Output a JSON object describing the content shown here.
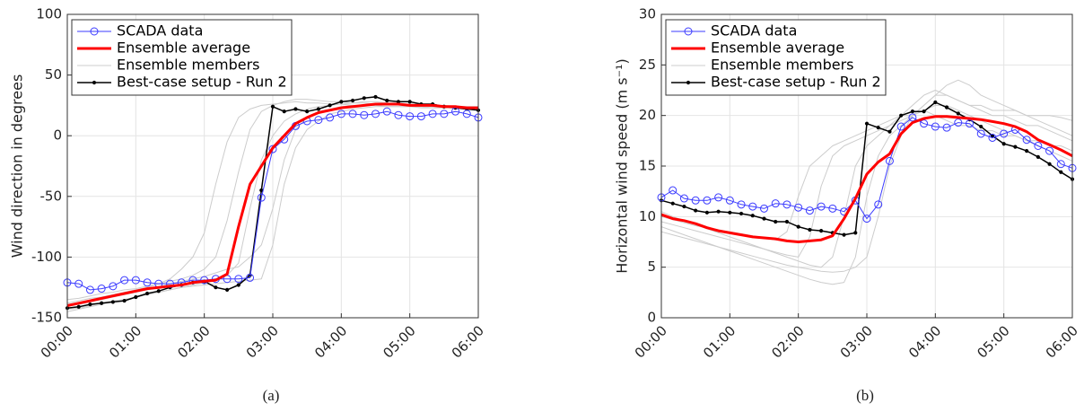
{
  "chart_data": [
    {
      "type": "line",
      "caption": "(a)",
      "y_label": "Wind direction in degrees",
      "grid": true,
      "legend": "upper-left",
      "x": [
        "00:00",
        "00:10",
        "00:20",
        "00:30",
        "00:40",
        "00:50",
        "01:00",
        "01:10",
        "01:20",
        "01:30",
        "01:40",
        "01:50",
        "02:00",
        "02:10",
        "02:20",
        "02:30",
        "02:40",
        "02:50",
        "03:00",
        "03:10",
        "03:20",
        "03:30",
        "03:40",
        "03:50",
        "04:00",
        "04:10",
        "04:20",
        "04:30",
        "04:40",
        "04:50",
        "05:00",
        "05:10",
        "05:20",
        "05:30",
        "05:40",
        "05:50",
        "06:00"
      ],
      "xlim": [
        "00:00",
        "06:00"
      ],
      "xticks": [
        "00:00",
        "01:00",
        "02:00",
        "03:00",
        "04:00",
        "05:00",
        "06:00"
      ],
      "ylim": [
        -150,
        100
      ],
      "yticks": [
        -150,
        -100,
        -50,
        0,
        50,
        100
      ],
      "series": [
        {
          "name": "SCADA data",
          "color": "#3b3bff",
          "marker": "circle",
          "values": [
            -121,
            -122,
            -127,
            -126,
            -124,
            -119,
            -119,
            -121,
            -122,
            -122,
            -121,
            -119,
            -119,
            -118,
            -118,
            -118,
            -117,
            -51,
            -11,
            -3,
            8,
            12,
            13,
            15,
            18,
            18,
            17,
            18,
            20,
            17,
            16,
            16,
            18,
            18,
            20,
            18,
            15
          ]
        },
        {
          "name": "Ensemble average",
          "color": "#ff0000",
          "values": [
            -140,
            -138,
            -136,
            -134,
            -132,
            -130,
            -128,
            -126,
            -125,
            -124,
            -123,
            -121,
            -120,
            -119,
            -114,
            -75,
            -40,
            -25,
            -10,
            0,
            10,
            15,
            19,
            21,
            23,
            24,
            25,
            26,
            26,
            26,
            25,
            25,
            25,
            24,
            24,
            23,
            23
          ]
        },
        {
          "name": "Ensemble members",
          "color": "#cccccc",
          "members": [
            [
              -138,
              -136,
              -134,
              -133,
              -131,
              -129,
              -127,
              -125,
              -122,
              -118,
              -110,
              -100,
              -80,
              -40,
              -5,
              15,
              22,
              25,
              26,
              27,
              28,
              27,
              27,
              26,
              26,
              25,
              25,
              25,
              24,
              24,
              24,
              24,
              23,
              23,
              23,
              22,
              22
            ],
            [
              -145,
              -143,
              -141,
              -139,
              -137,
              -135,
              -133,
              -131,
              -129,
              -127,
              -125,
              -123,
              -121,
              -119,
              -115,
              -105,
              -60,
              -20,
              0,
              12,
              18,
              22,
              24,
              25,
              26,
              27,
              28,
              28,
              27,
              27,
              26,
              26,
              25,
              25,
              24,
              24,
              24
            ],
            [
              -140,
              -139,
              -137,
              -135,
              -133,
              -131,
              -129,
              -127,
              -125,
              -122,
              -120,
              -118,
              -116,
              -113,
              -110,
              -108,
              -100,
              -90,
              -60,
              -20,
              5,
              15,
              20,
              22,
              24,
              25,
              25,
              26,
              26,
              26,
              25,
              25,
              24,
              24,
              24,
              23,
              23
            ],
            [
              -135,
              -134,
              -132,
              -130,
              -129,
              -127,
              -126,
              -124,
              -122,
              -120,
              -118,
              -115,
              -110,
              -100,
              -70,
              -30,
              5,
              20,
              25,
              28,
              30,
              30,
              29,
              28,
              28,
              27,
              27,
              26,
              26,
              26,
              25,
              25,
              25,
              24,
              24,
              23,
              23
            ],
            [
              -143,
              -142,
              -140,
              -138,
              -136,
              -135,
              -133,
              -131,
              -129,
              -127,
              -125,
              -124,
              -123,
              -122,
              -121,
              -120,
              -119,
              -118,
              -90,
              -40,
              -10,
              5,
              12,
              18,
              20,
              22,
              23,
              24,
              24,
              24,
              24,
              23,
              23,
              23,
              23,
              22,
              22
            ]
          ]
        },
        {
          "name": "Best-case setup - Run 2",
          "color": "#000000",
          "marker": "dot",
          "values": [
            -142,
            -141,
            -139,
            -138,
            -137,
            -136,
            -133,
            -130,
            -128,
            -125,
            -123,
            -121,
            -120,
            -125,
            -127,
            -123,
            -115,
            -45,
            24,
            20,
            22,
            20,
            22,
            25,
            28,
            29,
            31,
            32,
            29,
            28,
            28,
            26,
            26,
            24,
            23,
            22,
            21
          ]
        }
      ]
    },
    {
      "type": "line",
      "caption": "(b)",
      "y_label": "Horizontal wind speed (m s⁻¹)",
      "grid": true,
      "legend": "upper-left",
      "x": [
        "00:00",
        "00:10",
        "00:20",
        "00:30",
        "00:40",
        "00:50",
        "01:00",
        "01:10",
        "01:20",
        "01:30",
        "01:40",
        "01:50",
        "02:00",
        "02:10",
        "02:20",
        "02:30",
        "02:40",
        "02:50",
        "03:00",
        "03:10",
        "03:20",
        "03:30",
        "03:40",
        "03:50",
        "04:00",
        "04:10",
        "04:20",
        "04:30",
        "04:40",
        "04:50",
        "05:00",
        "05:10",
        "05:20",
        "05:30",
        "05:40",
        "05:50",
        "06:00"
      ],
      "xlim": [
        "00:00",
        "06:00"
      ],
      "xticks": [
        "00:00",
        "01:00",
        "02:00",
        "03:00",
        "04:00",
        "05:00",
        "06:00"
      ],
      "ylim": [
        0,
        30
      ],
      "yticks": [
        0,
        5,
        10,
        15,
        20,
        25,
        30
      ],
      "series": [
        {
          "name": "SCADA data",
          "color": "#3b3bff",
          "marker": "circle",
          "values": [
            11.9,
            12.6,
            11.8,
            11.6,
            11.6,
            11.9,
            11.6,
            11.2,
            11.0,
            10.8,
            11.3,
            11.2,
            10.9,
            10.6,
            11.0,
            10.8,
            10.5,
            11.6,
            9.8,
            11.2,
            15.5,
            18.9,
            19.8,
            19.2,
            18.9,
            18.8,
            19.3,
            19.2,
            18.2,
            17.8,
            18.2,
            18.6,
            17.6,
            17.0,
            16.5,
            15.2,
            14.8
          ]
        },
        {
          "name": "Ensemble average",
          "color": "#ff0000",
          "values": [
            10.2,
            9.8,
            9.6,
            9.3,
            8.9,
            8.6,
            8.4,
            8.2,
            8.0,
            7.9,
            7.8,
            7.6,
            7.5,
            7.6,
            7.7,
            8.1,
            9.8,
            11.8,
            14.2,
            15.4,
            16.2,
            18.2,
            19.3,
            19.7,
            19.9,
            19.9,
            19.8,
            19.7,
            19.6,
            19.4,
            19.2,
            18.9,
            18.4,
            17.6,
            17.1,
            16.6,
            16.0
          ]
        },
        {
          "name": "Ensemble members",
          "color": "#cccccc",
          "members": [
            [
              10.5,
              10.0,
              9.6,
              9.2,
              8.8,
              8.4,
              8.0,
              7.6,
              7.2,
              6.8,
              6.4,
              6.0,
              5.6,
              5.2,
              5.0,
              6.0,
              10,
              15,
              17,
              18,
              19,
              20,
              21,
              22,
              22.5,
              22,
              21.5,
              21,
              21,
              20.5,
              20.5,
              20.5,
              20,
              20,
              20,
              19.8,
              19.5
            ],
            [
              9.0,
              8.6,
              8.2,
              7.8,
              7.4,
              7.0,
              6.6,
              6.2,
              5.8,
              5.4,
              5.0,
              4.6,
              4.2,
              3.8,
              3.5,
              3.3,
              3.5,
              6,
              12,
              16,
              18,
              19,
              20,
              21,
              22,
              23,
              23.5,
              23,
              22,
              21.5,
              21,
              20.5,
              20,
              19.5,
              19,
              18.5,
              18
            ],
            [
              9.5,
              9.2,
              8.9,
              8.6,
              8.3,
              8.0,
              7.7,
              7.4,
              7.1,
              6.8,
              6.5,
              6.2,
              6.0,
              8,
              13,
              16,
              17,
              17.5,
              18,
              18.5,
              19,
              19.5,
              20,
              20.5,
              21,
              21,
              20.5,
              20,
              19.5,
              19,
              18.5,
              18,
              17.5,
              17,
              16.5,
              16,
              15.5
            ],
            [
              8.5,
              8.2,
              7.9,
              7.6,
              7.3,
              7.0,
              6.7,
              6.4,
              6.1,
              5.8,
              5.5,
              5.2,
              5.0,
              4.8,
              4.6,
              4.5,
              4.6,
              5,
              6,
              10,
              15,
              18,
              20,
              21,
              22,
              22,
              21.5,
              21,
              20.5,
              20,
              20,
              19.5,
              19,
              19,
              18.5,
              18,
              17.5
            ],
            [
              10.0,
              9.7,
              9.4,
              9.1,
              8.9,
              8.7,
              8.5,
              8.3,
              8.1,
              7.9,
              7.7,
              8.5,
              12,
              15,
              16,
              17,
              17.5,
              18,
              18.5,
              19,
              19.5,
              20,
              20,
              20.5,
              20,
              19.5,
              19,
              19,
              18.5,
              18.5,
              18,
              18,
              17.5,
              17.5,
              17,
              17,
              16.5
            ]
          ]
        },
        {
          "name": "Best-case setup - Run 2",
          "color": "#000000",
          "marker": "dot",
          "values": [
            11.6,
            11.3,
            11.0,
            10.6,
            10.4,
            10.5,
            10.4,
            10.3,
            10.1,
            9.8,
            9.5,
            9.5,
            9.0,
            8.7,
            8.6,
            8.4,
            8.2,
            8.4,
            19.2,
            18.8,
            18.4,
            20.0,
            20.4,
            20.4,
            21.3,
            20.8,
            20.2,
            19.6,
            18.9,
            18.0,
            17.2,
            16.9,
            16.5,
            15.9,
            15.2,
            14.4,
            13.7
          ]
        }
      ]
    }
  ]
}
